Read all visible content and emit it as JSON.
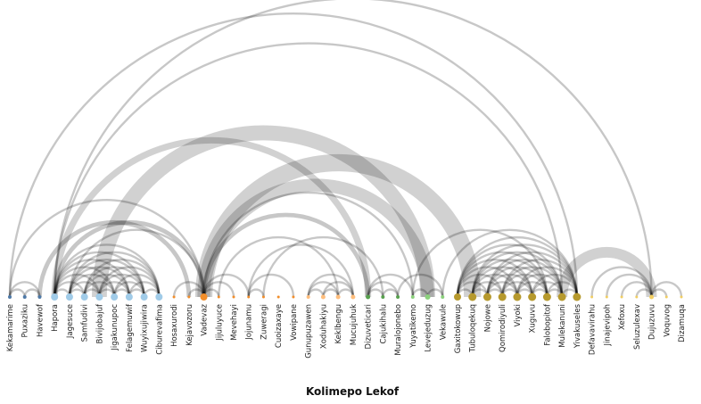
{
  "title": "Kolimepo Lekof",
  "groups": {
    "g1": "#4e79a7",
    "g2": "#a0cbe8",
    "g3": "#f28e2b",
    "g4": "#ffbe7d",
    "g5": "#59a14f",
    "g6": "#8cd17d",
    "g7": "#b6992d",
    "g8": "#f1ce63"
  },
  "nodes": [
    {
      "name": "Kekamarime",
      "group": "g1",
      "size": 2
    },
    {
      "name": "Puxaziku",
      "group": "g1",
      "size": 2
    },
    {
      "name": "Havewof",
      "group": "g1",
      "size": 2
    },
    {
      "name": "Hapora",
      "group": "g2",
      "size": 4
    },
    {
      "name": "Jagesuce",
      "group": "g2",
      "size": 4
    },
    {
      "name": "Samfudivi",
      "group": "g2",
      "size": 4
    },
    {
      "name": "Bivijobajuf",
      "group": "g2",
      "size": 4
    },
    {
      "name": "Jigakunupoc",
      "group": "g2",
      "size": 4
    },
    {
      "name": "Felagemuwif",
      "group": "g2",
      "size": 4
    },
    {
      "name": "Wuyixujiwira",
      "group": "g2",
      "size": 4
    },
    {
      "name": "Ciburevafima",
      "group": "g2",
      "size": 4
    },
    {
      "name": "Hosaxurodi",
      "group": "g3",
      "size": 1.5
    },
    {
      "name": "Kejavozoru",
      "group": "g3",
      "size": 1.5
    },
    {
      "name": "Vadevaz",
      "group": "g3",
      "size": 4
    },
    {
      "name": "Jijuluyuce",
      "group": "g3",
      "size": 1.5
    },
    {
      "name": "Mevehayi",
      "group": "g3",
      "size": 1.5
    },
    {
      "name": "Jojunamu",
      "group": "g3",
      "size": 1.5
    },
    {
      "name": "Zuweragi",
      "group": "g3",
      "size": 1.5
    },
    {
      "name": "Cuoizaxaye",
      "group": "g3",
      "size": 1.5
    },
    {
      "name": "Vowipane",
      "group": "g3",
      "size": 1.5
    },
    {
      "name": "Gunupuzawen",
      "group": "g4",
      "size": 2
    },
    {
      "name": "Xoduhakiyu",
      "group": "g4",
      "size": 2.5
    },
    {
      "name": "Keklbengu",
      "group": "g4",
      "size": 2.5
    },
    {
      "name": "Mucujuhuk",
      "group": "g4",
      "size": 2.5
    },
    {
      "name": "Dizuveticari",
      "group": "g5",
      "size": 2.5
    },
    {
      "name": "Cajukihalu",
      "group": "g5",
      "size": 2
    },
    {
      "name": "Muralojonebo",
      "group": "g5",
      "size": 2
    },
    {
      "name": "Yuyatikemo",
      "group": "g6",
      "size": 2
    },
    {
      "name": "Levejeduzug",
      "group": "g6",
      "size": 3
    },
    {
      "name": "Vekawule",
      "group": "g6",
      "size": 2
    },
    {
      "name": "Gaxitokowup",
      "group": "g7",
      "size": 4
    },
    {
      "name": "Tubuloqekuq",
      "group": "g7",
      "size": 4.5
    },
    {
      "name": "Nojowe",
      "group": "g7",
      "size": 4.5
    },
    {
      "name": "Qomirodiyuli",
      "group": "g7",
      "size": 4.5
    },
    {
      "name": "Viyoki",
      "group": "g7",
      "size": 4.5
    },
    {
      "name": "Xuguvu",
      "group": "g7",
      "size": 4.5
    },
    {
      "name": "Falobopitof",
      "group": "g7",
      "size": 4.5
    },
    {
      "name": "Mulekanuni",
      "group": "g7",
      "size": 4.5
    },
    {
      "name": "Yivakuseles",
      "group": "g7",
      "size": 4.5
    },
    {
      "name": "Defavavirahu",
      "group": "g8",
      "size": 1.5
    },
    {
      "name": "Jinajevipoh",
      "group": "g8",
      "size": 1.5
    },
    {
      "name": "Xefoxu",
      "group": "g8",
      "size": 1.5
    },
    {
      "name": "Seluzulexav",
      "group": "g8",
      "size": 1.5
    },
    {
      "name": "Dujuzuvu",
      "group": "g8",
      "size": 2.5
    },
    {
      "name": "Voquvog",
      "group": "g8",
      "size": 1.5
    },
    {
      "name": "Dizamuqa",
      "group": "g8",
      "size": 1.5
    }
  ],
  "links": [
    [
      0,
      1,
      1
    ],
    [
      1,
      2,
      1
    ],
    [
      0,
      2,
      1
    ],
    [
      0,
      13,
      1
    ],
    [
      0,
      38,
      1
    ],
    [
      3,
      4,
      1
    ],
    [
      3,
      5,
      1
    ],
    [
      3,
      6,
      1
    ],
    [
      3,
      7,
      1
    ],
    [
      3,
      8,
      1
    ],
    [
      3,
      9,
      1
    ],
    [
      3,
      10,
      1
    ],
    [
      4,
      5,
      1
    ],
    [
      4,
      6,
      1
    ],
    [
      4,
      7,
      1
    ],
    [
      4,
      8,
      1
    ],
    [
      4,
      9,
      1
    ],
    [
      4,
      10,
      1
    ],
    [
      5,
      6,
      1
    ],
    [
      5,
      7,
      1
    ],
    [
      5,
      8,
      1
    ],
    [
      5,
      9,
      1
    ],
    [
      5,
      10,
      1
    ],
    [
      6,
      7,
      1
    ],
    [
      6,
      8,
      1
    ],
    [
      6,
      9,
      1
    ],
    [
      6,
      10,
      1
    ],
    [
      7,
      8,
      1
    ],
    [
      7,
      9,
      1
    ],
    [
      7,
      10,
      1
    ],
    [
      8,
      9,
      1
    ],
    [
      8,
      10,
      1
    ],
    [
      9,
      10,
      1
    ],
    [
      3,
      13,
      2
    ],
    [
      3,
      24,
      3
    ],
    [
      3,
      37,
      1
    ],
    [
      3,
      43,
      1
    ],
    [
      4,
      13,
      1
    ],
    [
      2,
      12,
      2
    ],
    [
      11,
      13,
      1
    ],
    [
      12,
      13,
      1
    ],
    [
      13,
      14,
      1
    ],
    [
      13,
      15,
      1
    ],
    [
      13,
      16,
      1
    ],
    [
      13,
      24,
      2
    ],
    [
      13,
      27,
      1
    ],
    [
      13,
      28,
      6
    ],
    [
      13,
      31,
      8
    ],
    [
      6,
      28,
      7
    ],
    [
      16,
      17,
      1
    ],
    [
      16,
      19,
      1
    ],
    [
      16,
      23,
      1
    ],
    [
      17,
      25,
      1
    ],
    [
      14,
      22,
      1
    ],
    [
      20,
      21,
      1
    ],
    [
      20,
      22,
      1
    ],
    [
      20,
      23,
      1
    ],
    [
      21,
      22,
      1
    ],
    [
      21,
      23,
      1
    ],
    [
      22,
      23,
      1
    ],
    [
      24,
      25,
      1
    ],
    [
      24,
      26,
      1
    ],
    [
      25,
      26,
      1
    ],
    [
      24,
      27,
      1
    ],
    [
      28,
      29,
      1
    ],
    [
      27,
      28,
      1
    ],
    [
      26,
      29,
      1
    ],
    [
      30,
      31,
      1
    ],
    [
      30,
      32,
      1
    ],
    [
      30,
      33,
      1
    ],
    [
      30,
      34,
      1
    ],
    [
      30,
      35,
      1
    ],
    [
      30,
      36,
      1
    ],
    [
      30,
      37,
      1
    ],
    [
      30,
      38,
      1
    ],
    [
      31,
      32,
      1
    ],
    [
      31,
      33,
      1
    ],
    [
      31,
      34,
      1
    ],
    [
      31,
      35,
      1
    ],
    [
      31,
      36,
      1
    ],
    [
      31,
      37,
      1
    ],
    [
      31,
      38,
      1
    ],
    [
      32,
      33,
      1
    ],
    [
      32,
      34,
      1
    ],
    [
      32,
      35,
      1
    ],
    [
      32,
      36,
      1
    ],
    [
      32,
      37,
      1
    ],
    [
      32,
      38,
      1
    ],
    [
      33,
      34,
      1
    ],
    [
      33,
      35,
      1
    ],
    [
      33,
      36,
      1
    ],
    [
      33,
      37,
      1
    ],
    [
      33,
      38,
      1
    ],
    [
      34,
      35,
      1
    ],
    [
      34,
      36,
      1
    ],
    [
      34,
      37,
      1
    ],
    [
      34,
      38,
      1
    ],
    [
      35,
      36,
      1
    ],
    [
      35,
      37,
      1
    ],
    [
      35,
      38,
      1
    ],
    [
      36,
      37,
      1
    ],
    [
      36,
      38,
      1
    ],
    [
      37,
      38,
      1
    ],
    [
      27,
      36,
      1
    ],
    [
      29,
      38,
      1
    ],
    [
      37,
      43,
      5
    ],
    [
      39,
      43,
      1
    ],
    [
      40,
      43,
      1
    ],
    [
      42,
      43,
      1
    ],
    [
      43,
      44,
      1
    ],
    [
      43,
      45,
      1
    ],
    [
      41,
      43,
      1
    ]
  ]
}
